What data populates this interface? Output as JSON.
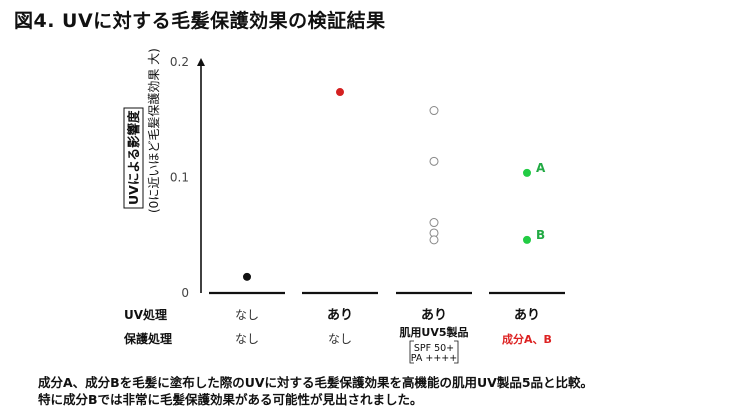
{
  "title": "図4. UVに対する毛髪保護効果の検証結果",
  "caption": {
    "line1": "成分A、成分Bを毛髪に塗布した際のUVに対する毛髪保護効果を高機能の肌用UV製品5品と比較。",
    "line2": "特に成分Bでは非常に毛髪保護効果がある可能性が見出されました。"
  },
  "chart_data": {
    "type": "scatter",
    "ylabel_main": "UVによる影響度",
    "ylabel_sub": "(0に近いほど毛髪保護効果 大)",
    "ylim": [
      0,
      0.2
    ],
    "yticks": [
      "0",
      "0.1",
      "0.2"
    ],
    "row_labels": {
      "uv": "UV処理",
      "protect": "保護処理"
    },
    "groups": [
      {
        "uv": "なし",
        "uv_bold": false,
        "protect": "なし",
        "protect_style": "normal",
        "points": [
          {
            "y": 0.014,
            "color": "#111111",
            "fill": true
          }
        ]
      },
      {
        "uv": "あり",
        "uv_bold": true,
        "protect": "なし",
        "protect_style": "normal",
        "points": [
          {
            "y": 0.174,
            "color": "#d42020",
            "fill": true
          }
        ]
      },
      {
        "uv": "あり",
        "uv_bold": true,
        "protect": "肌用UV5製品",
        "protect_style": "product",
        "protect_sub": [
          "SPF 50+",
          "PA ++++"
        ],
        "points": [
          {
            "y": 0.158,
            "color": "#888888",
            "fill": false
          },
          {
            "y": 0.114,
            "color": "#888888",
            "fill": false
          },
          {
            "y": 0.061,
            "color": "#888888",
            "fill": false
          },
          {
            "y": 0.052,
            "color": "#888888",
            "fill": false
          },
          {
            "y": 0.046,
            "color": "#888888",
            "fill": false
          }
        ]
      },
      {
        "uv": "あり",
        "uv_bold": true,
        "protect": "成分A、B",
        "protect_style": "red",
        "points": [
          {
            "y": 0.104,
            "color": "#22cc44",
            "fill": true,
            "label": "A"
          },
          {
            "y": 0.046,
            "color": "#22cc44",
            "fill": true,
            "label": "B"
          }
        ]
      }
    ]
  }
}
